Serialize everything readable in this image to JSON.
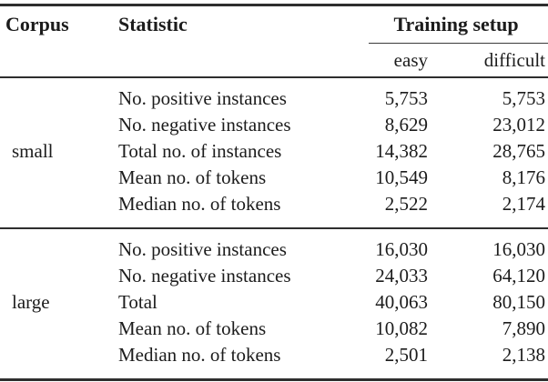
{
  "table": {
    "header": {
      "corpus": "Corpus",
      "statistic": "Statistic",
      "training_setup": "Training setup",
      "sub_easy": "easy",
      "sub_difficult": "difficult"
    },
    "groups": [
      {
        "corpus": "small",
        "rows": [
          {
            "statistic": "No. positive instances",
            "easy": "5,753",
            "difficult": "5,753"
          },
          {
            "statistic": "No. negative instances",
            "easy": "8,629",
            "difficult": "23,012"
          },
          {
            "statistic": "Total no. of instances",
            "easy": "14,382",
            "difficult": "28,765"
          },
          {
            "statistic": "Mean no. of tokens",
            "easy": "10,549",
            "difficult": "8,176"
          },
          {
            "statistic": "Median no. of tokens",
            "easy": "2,522",
            "difficult": "2,174"
          }
        ]
      },
      {
        "corpus": "large",
        "rows": [
          {
            "statistic": "No. positive instances",
            "easy": "16,030",
            "difficult": "16,030"
          },
          {
            "statistic": "No. negative instances",
            "easy": "24,033",
            "difficult": "64,120"
          },
          {
            "statistic": "Total",
            "easy": "40,063",
            "difficult": "80,150"
          },
          {
            "statistic": "Mean no. of tokens",
            "easy": "10,082",
            "difficult": "7,890"
          },
          {
            "statistic": "Median no. of tokens",
            "easy": "2,501",
            "difficult": "2,138"
          }
        ]
      }
    ]
  }
}
